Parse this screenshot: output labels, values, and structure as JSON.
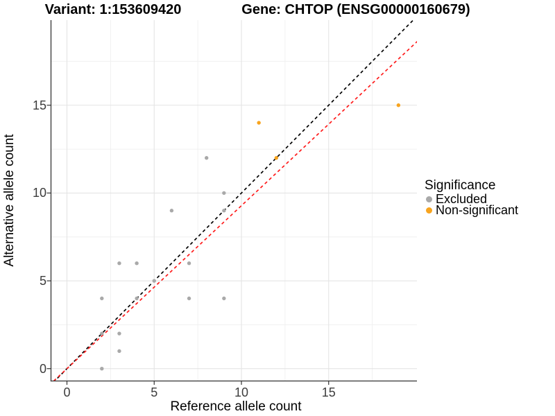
{
  "titles": {
    "variant": "Variant: 1:153609420",
    "gene": "Gene: CHTOP (ENSG00000160679)"
  },
  "legend": {
    "title": "Significance",
    "items": [
      {
        "label": "Excluded",
        "color": "#A9A9A9"
      },
      {
        "label": "Non-significant",
        "color": "#F8A41E"
      }
    ]
  },
  "chart_data": {
    "type": "scatter",
    "title_left": "Variant: 1:153609420",
    "title_right": "Gene: CHTOP (ENSG00000160679)",
    "xlabel": "Reference allele count",
    "ylabel": "Alternative allele count",
    "xlim": [
      -0.92,
      20.06
    ],
    "ylim": [
      -0.68,
      19.84
    ],
    "x_ticks": [
      0,
      5,
      10,
      15
    ],
    "y_ticks": [
      0,
      5,
      10,
      15
    ],
    "x_minor": [
      2.5,
      7.5,
      12.5,
      17.5
    ],
    "y_minor": [
      2.5,
      7.5,
      12.5,
      17.5
    ],
    "grid": true,
    "legend_position": "right",
    "series": [
      {
        "name": "Excluded",
        "color": "#A9A9A9",
        "points": [
          [
            2,
            0
          ],
          [
            3,
            1
          ],
          [
            2,
            2
          ],
          [
            3,
            2
          ],
          [
            2,
            4
          ],
          [
            4,
            4
          ],
          [
            7,
            4
          ],
          [
            9,
            4
          ],
          [
            5,
            5
          ],
          [
            3,
            6
          ],
          [
            4,
            6
          ],
          [
            7,
            6
          ],
          [
            6,
            9
          ],
          [
            9,
            9
          ],
          [
            9,
            10
          ],
          [
            8,
            12
          ]
        ]
      },
      {
        "name": "Non-significant",
        "color": "#F8A41E",
        "points": [
          [
            12,
            12
          ],
          [
            11,
            14
          ],
          [
            19,
            15
          ]
        ]
      }
    ],
    "lines": [
      {
        "name": "identity-line",
        "slope": 1.0,
        "intercept": 0,
        "color": "#000000",
        "style": "dashed"
      },
      {
        "name": "expected-ratio-line",
        "slope": 0.928,
        "intercept": 0,
        "color": "#FF1A1A",
        "style": "dashed"
      }
    ]
  }
}
